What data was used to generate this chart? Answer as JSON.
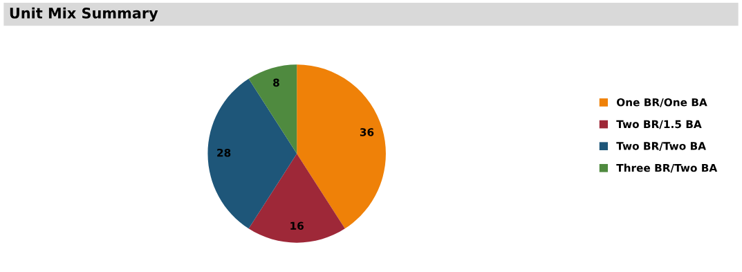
{
  "chart_data": {
    "type": "pie",
    "title": "Unit Mix Summary",
    "categories": [
      "One BR/One BA",
      "Two BR/1.5 BA",
      "Two BR/Two BA",
      "Three BR/Two BA"
    ],
    "values": [
      36,
      16,
      28,
      8
    ],
    "colors": [
      "#ef8108",
      "#9e2838",
      "#1e5679",
      "#4f8a3f"
    ],
    "data_labels": true,
    "legend": "right"
  }
}
